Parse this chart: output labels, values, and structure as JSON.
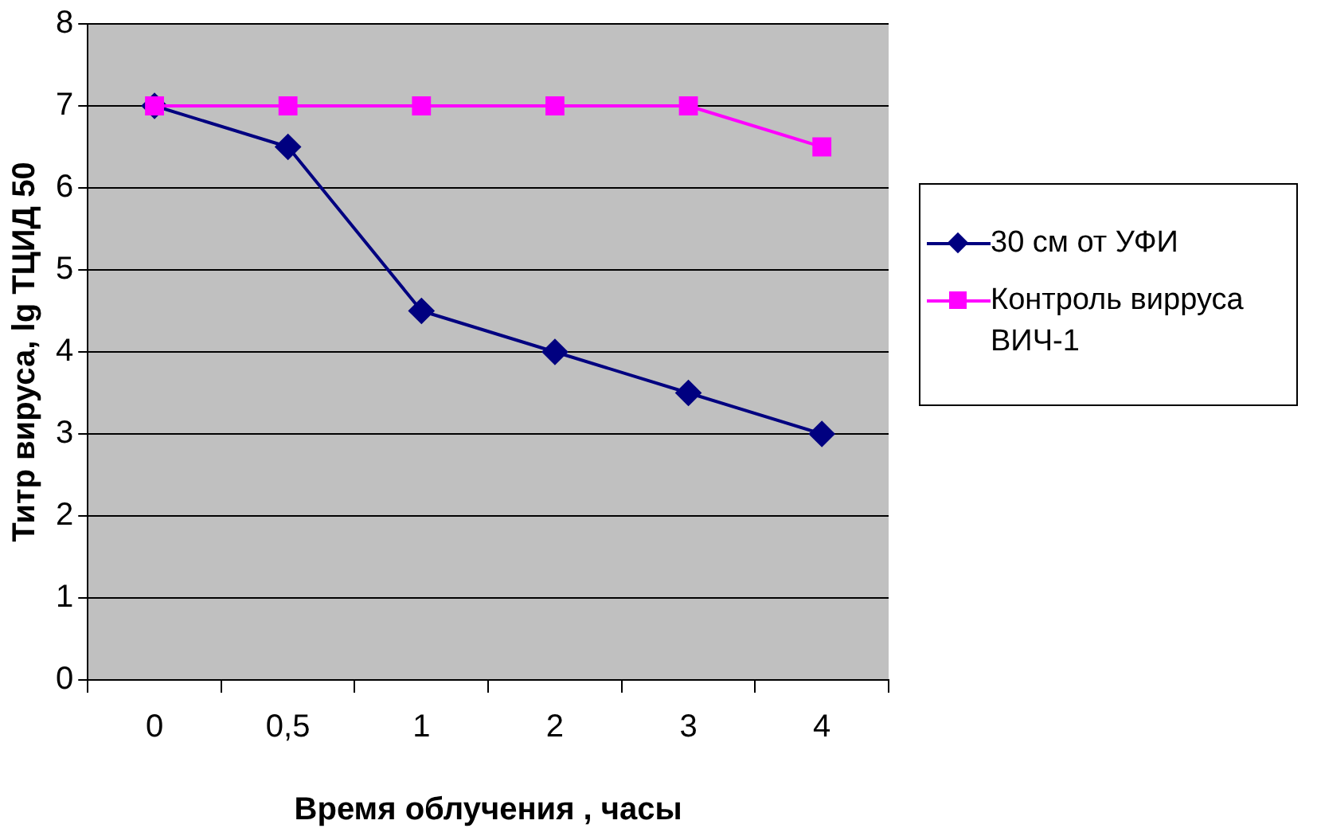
{
  "chart_data": {
    "type": "line",
    "xlabel": "Время облучения , часы",
    "ylabel": "Титр вируса, lg ТЦИД 50",
    "categories": [
      "0",
      "0,5",
      "1",
      "2",
      "3",
      "4"
    ],
    "series": [
      {
        "name": "30 см от УФИ",
        "color": "#000080",
        "marker": "diamond",
        "values": [
          7,
          6.5,
          4.5,
          4,
          3.5,
          3
        ]
      },
      {
        "name": "Контроль вирруса ВИЧ-1",
        "color": "#ff00ff",
        "marker": "square",
        "values": [
          7,
          7,
          7,
          7,
          7,
          6.5
        ]
      }
    ],
    "ylim": [
      0,
      8
    ],
    "yticks": [
      0,
      1,
      2,
      3,
      4,
      5,
      6,
      7,
      8
    ],
    "grid": "y",
    "legend": "right",
    "line_style": "solid"
  }
}
